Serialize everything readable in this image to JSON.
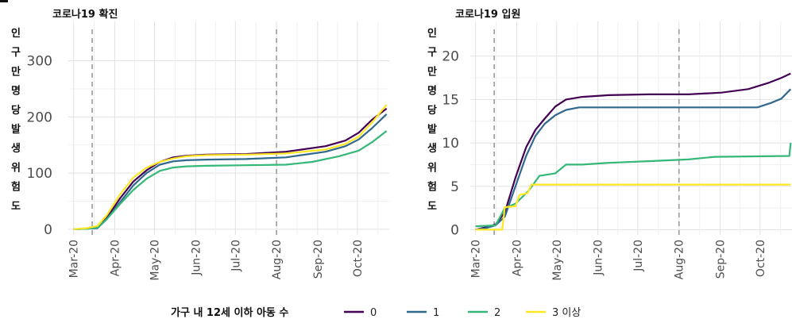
{
  "chart_data": [
    {
      "type": "line",
      "title": "코로나19 확진",
      "ylabel_chars": [
        "인",
        "구",
        "만",
        "명",
        "당",
        "발",
        "생",
        "위",
        "험",
        "도"
      ],
      "xlabel": "",
      "x_ticks": [
        "Mar-20",
        "Apr-20",
        "May-20",
        "Jun-20",
        "Jul-20",
        "Aug-20",
        "Sep-20",
        "Oct-20"
      ],
      "x_tick_days": [
        0,
        31,
        61,
        92,
        122,
        153,
        184,
        214
      ],
      "xlim_days": [
        -4,
        238
      ],
      "ylim": [
        -10,
        370
      ],
      "y_ticks": [
        0,
        100,
        200,
        300
      ],
      "vlines_days": [
        14,
        153
      ],
      "grid": true,
      "series": [
        {
          "name": "0",
          "color": "#440154",
          "points": [
            [
              0,
              0
            ],
            [
              10,
              1
            ],
            [
              18,
              3
            ],
            [
              25,
              20
            ],
            [
              35,
              55
            ],
            [
              45,
              85
            ],
            [
              55,
              105
            ],
            [
              65,
              120
            ],
            [
              75,
              128
            ],
            [
              85,
              131
            ],
            [
              100,
              133
            ],
            [
              130,
              134
            ],
            [
              160,
              138
            ],
            [
              190,
              148
            ],
            [
              205,
              158
            ],
            [
              215,
              172
            ],
            [
              225,
              195
            ],
            [
              236,
              215
            ]
          ]
        },
        {
          "name": "1",
          "color": "#31688e",
          "points": [
            [
              0,
              0
            ],
            [
              10,
              1
            ],
            [
              18,
              2
            ],
            [
              25,
              18
            ],
            [
              35,
              48
            ],
            [
              45,
              78
            ],
            [
              55,
              100
            ],
            [
              65,
              115
            ],
            [
              75,
              121
            ],
            [
              85,
              123
            ],
            [
              100,
              124
            ],
            [
              130,
              125
            ],
            [
              160,
              128
            ],
            [
              190,
              138
            ],
            [
              205,
              148
            ],
            [
              215,
              160
            ],
            [
              225,
              180
            ],
            [
              236,
              205
            ]
          ]
        },
        {
          "name": "2",
          "color": "#35b779",
          "points": [
            [
              0,
              0
            ],
            [
              10,
              1
            ],
            [
              18,
              3
            ],
            [
              25,
              18
            ],
            [
              35,
              45
            ],
            [
              45,
              70
            ],
            [
              55,
              90
            ],
            [
              65,
              104
            ],
            [
              75,
              110
            ],
            [
              85,
              112
            ],
            [
              100,
              113
            ],
            [
              130,
              114
            ],
            [
              160,
              115
            ],
            [
              180,
              120
            ],
            [
              200,
              130
            ],
            [
              215,
              140
            ],
            [
              225,
              155
            ],
            [
              236,
              175
            ]
          ]
        },
        {
          "name": "3 이상",
          "color": "#fde725",
          "points": [
            [
              0,
              0
            ],
            [
              10,
              2
            ],
            [
              18,
              6
            ],
            [
              25,
              25
            ],
            [
              35,
              62
            ],
            [
              45,
              92
            ],
            [
              55,
              110
            ],
            [
              65,
              120
            ],
            [
              75,
              126
            ],
            [
              85,
              130
            ],
            [
              100,
              132
            ],
            [
              130,
              133
            ],
            [
              160,
              135
            ],
            [
              190,
              142
            ],
            [
              205,
              152
            ],
            [
              215,
              165
            ],
            [
              225,
              190
            ],
            [
              236,
              222
            ]
          ]
        }
      ]
    },
    {
      "type": "line",
      "title": "코로나19 입원",
      "ylabel_chars": [
        "인",
        "구",
        "만",
        "명",
        "당",
        "발",
        "생",
        "위",
        "험",
        "도"
      ],
      "xlabel": "",
      "x_ticks": [
        "Mar-20",
        "Apr-20",
        "May-20",
        "Jun-20",
        "Jul-20",
        "Aug-20",
        "Sep-20",
        "Oct-20"
      ],
      "x_tick_days": [
        0,
        31,
        61,
        92,
        122,
        153,
        184,
        214
      ],
      "xlim_days": [
        -4,
        238
      ],
      "ylim": [
        -0.6,
        24
      ],
      "y_ticks": [
        0,
        5,
        10,
        15,
        20
      ],
      "vlines_days": [
        14,
        153
      ],
      "grid": true,
      "series": [
        {
          "name": "0",
          "color": "#440154",
          "points": [
            [
              0,
              0
            ],
            [
              8,
              0.3
            ],
            [
              15,
              0.6
            ],
            [
              22,
              2
            ],
            [
              30,
              6
            ],
            [
              38,
              9.5
            ],
            [
              45,
              11.5
            ],
            [
              52,
              12.8
            ],
            [
              60,
              14.2
            ],
            [
              68,
              15
            ],
            [
              80,
              15.3
            ],
            [
              100,
              15.5
            ],
            [
              130,
              15.6
            ],
            [
              160,
              15.6
            ],
            [
              185,
              15.8
            ],
            [
              205,
              16.2
            ],
            [
              220,
              16.9
            ],
            [
              230,
              17.5
            ],
            [
              237,
              18
            ]
          ]
        },
        {
          "name": "1",
          "color": "#31688e",
          "points": [
            [
              0,
              0
            ],
            [
              8,
              0.2
            ],
            [
              15,
              0.5
            ],
            [
              22,
              1.5
            ],
            [
              30,
              5
            ],
            [
              38,
              8.5
            ],
            [
              45,
              10.8
            ],
            [
              52,
              12.2
            ],
            [
              60,
              13.2
            ],
            [
              68,
              13.8
            ],
            [
              78,
              14.1
            ],
            [
              100,
              14.1
            ],
            [
              140,
              14.1
            ],
            [
              180,
              14.1
            ],
            [
              212,
              14.1
            ],
            [
              222,
              14.6
            ],
            [
              230,
              15.1
            ],
            [
              237,
              16.2
            ]
          ]
        },
        {
          "name": "2",
          "color": "#35b779",
          "points": [
            [
              0,
              0.4
            ],
            [
              15,
              0.5
            ],
            [
              22,
              2.5
            ],
            [
              30,
              3
            ],
            [
              40,
              4.5
            ],
            [
              48,
              6.2
            ],
            [
              60,
              6.5
            ],
            [
              68,
              7.5
            ],
            [
              80,
              7.5
            ],
            [
              100,
              7.7
            ],
            [
              130,
              7.9
            ],
            [
              160,
              8.1
            ],
            [
              180,
              8.4
            ],
            [
              236,
              8.5
            ],
            [
              237,
              10
            ]
          ]
        },
        {
          "name": "3 이상",
          "color": "#fde725",
          "points": [
            [
              0,
              0
            ],
            [
              20,
              0
            ],
            [
              22,
              2.6
            ],
            [
              30,
              2.7
            ],
            [
              33,
              4
            ],
            [
              39,
              4.2
            ],
            [
              42,
              5.2
            ],
            [
              100,
              5.2
            ],
            [
              200,
              5.2
            ],
            [
              237,
              5.2
            ]
          ]
        }
      ]
    }
  ],
  "legend": {
    "title": "가구 내 12세 이하 아동 수",
    "items": [
      {
        "label": "0",
        "color": "#440154"
      },
      {
        "label": "1",
        "color": "#31688e"
      },
      {
        "label": "2",
        "color": "#35b779"
      },
      {
        "label": "3 이상",
        "color": "#fde725"
      }
    ],
    "position": "bottom"
  }
}
